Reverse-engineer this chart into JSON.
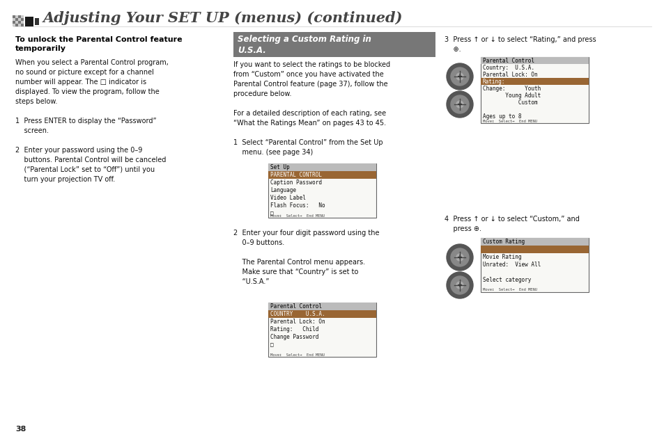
{
  "bg_color": "#ffffff",
  "title": "Adjusting Your SET UP (menus) (continued)",
  "title_fontsize": 15,
  "page_number": "38",
  "section_heading_line1": "To unlock the Parental Control feature",
  "section_heading_line2": "temporarily",
  "left_col_text": "When you select a Parental Control program,\nno sound or picture except for a channel\nnumber will appear. The □ indicator is\ndisplayed. To view the program, follow the\nsteps below.\n\n1  Press ENTER to display the “Password”\n    screen.\n\n2  Enter your password using the 0–9\n    buttons. Parental Control will be canceled\n    (“Parental Lock” set to “Off”) until you\n    turn your projection TV off.",
  "mid_header_text": "Selecting a Custom Rating in\nU.S.A.",
  "mid_col_text1": "If you want to select the ratings to be blocked\nfrom “Custom” once you have activated the\nParental Control feature (page 37), follow the\nprocedure below.\n\nFor a detailed description of each rating, see\n“What the Ratings Mean” on pages 43 to 45.\n\n1  Select “Parental Control” from the Set Up\n    menu. (see page 34)",
  "mid_col_text2": "2  Enter your four digit password using the\n    0–9 buttons.\n\n    The Parental Control menu appears.\n    Make sure that “Country” is set to\n    “U.S.A.”",
  "right_col_text3": "3  Press ↑ or ↓ to select “Rating,” and press\n    ⊕.",
  "right_col_text4": "4  Press ↑ or ↓ to select “Custom,” and\n    press ⊕.",
  "screen1_title": "Set Up",
  "screen1_highlight": "PARENTAL CONTROL",
  "screen1_items": [
    "Caption Password",
    "Language",
    "Video Label",
    "Flash Focus:   No",
    "□"
  ],
  "screen1_footer": "Move↕  Select→  End MENU",
  "screen2_title": "Parental Control",
  "screen2_highlight": "COUNTRY    U.S.A.",
  "screen2_items": [
    "Parental Lock: On",
    "Rating:   Child",
    "Change Password",
    "□"
  ],
  "screen2_footer": "Move↕  Select→  End MENU",
  "screen3_title": "Parental Control",
  "screen3_pre": [
    "Country:  U.S.A.",
    "Parental Lock: On"
  ],
  "screen3_highlight": "Rating:",
  "screen3_post": [
    "Change:      Youth",
    "       Young Adult",
    "           Custom",
    "",
    "Ages up to 8"
  ],
  "screen3_footer": "Move↕  Select→  End MENU",
  "screen4_title": "Custom Rating",
  "screen4_highlight": "              ",
  "screen4_items": [
    "Movie Rating",
    "Unrated:  View All",
    "",
    "Select category"
  ],
  "screen4_footer": "Move↕  Select→  End MENU",
  "header_bg": "#777777",
  "screen_bg": "#f8f8f5",
  "screen_border": "#666666",
  "screen_header_bg": "#bbbbbb",
  "screen_hl_bg": "#996633",
  "icon_colors": [
    "#888888",
    "#444444",
    "#222222",
    "#111111"
  ]
}
